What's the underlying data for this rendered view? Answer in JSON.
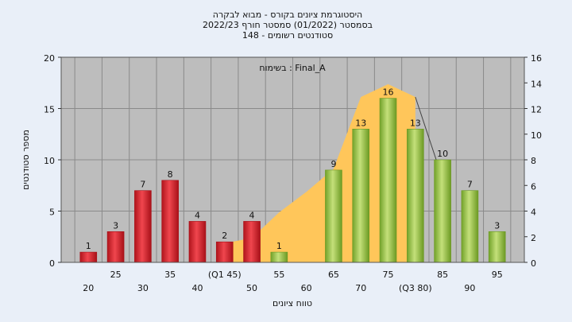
{
  "chart_data": {
    "type": "bar",
    "title_lines": [
      "היסטוגרמת ציונים בקורס - מבוא לבקרה",
      "בסמסטר  (01/2022)  סמסטר חורף 2022/23",
      "סטודנטים רשומים - 148"
    ],
    "annotation": "בשימוח : Final_A",
    "xlabel": "טווח ציונים",
    "ylabel": "מספר סטודנטים",
    "ylim": [
      0,
      20
    ],
    "yticks": [
      0,
      5,
      10,
      15,
      20
    ],
    "y2lim": [
      0,
      16
    ],
    "y2ticks": [
      0,
      2,
      4,
      6,
      8,
      10,
      12,
      14,
      16
    ],
    "grid": true,
    "xtick_labels": [
      {
        "pos": 20,
        "label": "20",
        "row": 2
      },
      {
        "pos": 25,
        "label": "25",
        "row": 1
      },
      {
        "pos": 30,
        "label": "30",
        "row": 2
      },
      {
        "pos": 35,
        "label": "35",
        "row": 1
      },
      {
        "pos": 40,
        "label": "40",
        "row": 2
      },
      {
        "pos": 45,
        "label": "(Q1 45)",
        "row": 1
      },
      {
        "pos": 50,
        "label": "50",
        "row": 2
      },
      {
        "pos": 55,
        "label": "55",
        "row": 1
      },
      {
        "pos": 60,
        "label": "60",
        "row": 2
      },
      {
        "pos": 65,
        "label": "65",
        "row": 1
      },
      {
        "pos": 70,
        "label": "70",
        "row": 2
      },
      {
        "pos": 75,
        "label": "75",
        "row": 1
      },
      {
        "pos": 80,
        "label": "(Q3 80)",
        "row": 2
      },
      {
        "pos": 85,
        "label": "85",
        "row": 1
      },
      {
        "pos": 90,
        "label": "90",
        "row": 2
      },
      {
        "pos": 95,
        "label": "95",
        "row": 1
      }
    ],
    "bars": [
      {
        "x": 20,
        "value": 1,
        "color": "red"
      },
      {
        "x": 25,
        "value": 3,
        "color": "red"
      },
      {
        "x": 30,
        "value": 7,
        "color": "red"
      },
      {
        "x": 35,
        "value": 8,
        "color": "red"
      },
      {
        "x": 40,
        "value": 4,
        "color": "red"
      },
      {
        "x": 45,
        "value": 2,
        "color": "red"
      },
      {
        "x": 50,
        "value": 4,
        "color": "red"
      },
      {
        "x": 55,
        "value": 1,
        "color": "green"
      },
      {
        "x": 65,
        "value": 9,
        "color": "green"
      },
      {
        "x": 70,
        "value": 13,
        "color": "green"
      },
      {
        "x": 75,
        "value": 16,
        "color": "green"
      },
      {
        "x": 80,
        "value": 13,
        "color": "green"
      },
      {
        "x": 85,
        "value": 10,
        "color": "green"
      },
      {
        "x": 90,
        "value": 7,
        "color": "green"
      },
      {
        "x": 95,
        "value": 3,
        "color": "green"
      }
    ],
    "area_series": {
      "axis": "y2",
      "points": [
        {
          "x": 45,
          "y": 0
        },
        {
          "x": 45,
          "y": 1.5
        },
        {
          "x": 50,
          "y": 1.9
        },
        {
          "x": 55,
          "y": 3.9
        },
        {
          "x": 60,
          "y": 5.5
        },
        {
          "x": 65,
          "y": 7.3
        },
        {
          "x": 70,
          "y": 12.9
        },
        {
          "x": 75,
          "y": 13.9
        },
        {
          "x": 80,
          "y": 12.9
        },
        {
          "x": 80,
          "y": 0
        }
      ]
    },
    "colors": {
      "background": "#e9eff8",
      "plot_bg": "#bdbdbd",
      "area": "#ffc65a",
      "bar_red": "#e8323c",
      "bar_red_dark": "#a81018",
      "bar_green": "#a9cc5c",
      "bar_green_dark": "#6c9a23"
    }
  }
}
